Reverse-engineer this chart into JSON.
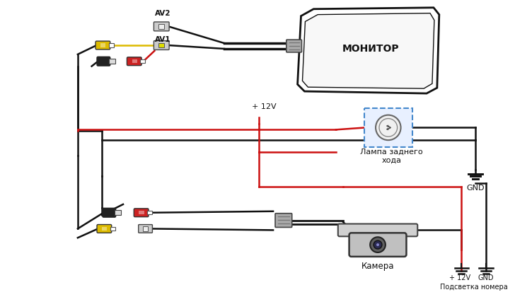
{
  "bg_color": "#ffffff",
  "lc_black": "#111111",
  "lc_red": "#cc1111",
  "lc_yellow": "#ddbb00",
  "lc_gray": "#888888",
  "monitor_label": "МОНИТОР",
  "lamp_label": "Лампа заднего\nхода",
  "gnd_label": "GND",
  "v12_label": "+ 12V",
  "camera_label": "Камера",
  "plate_label": "Подсветка номера",
  "av1_label": "AV1",
  "av2_label": "AV2",
  "gnd_bottom_label": "GND",
  "v12_bottom_label": "+ 12V"
}
